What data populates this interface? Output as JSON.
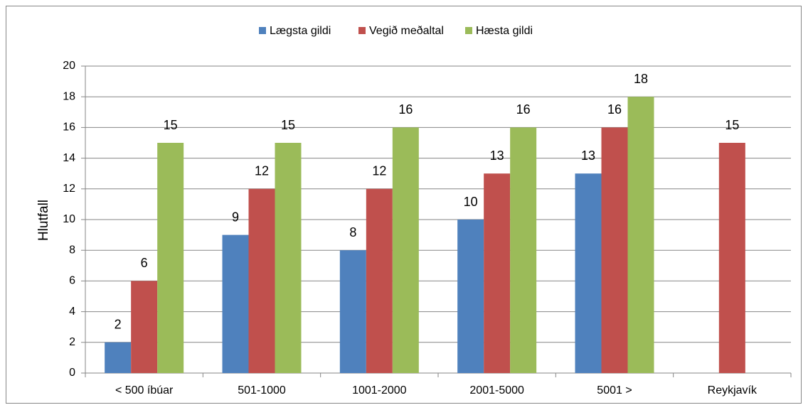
{
  "chart_data": {
    "type": "bar",
    "y_label": "Hlutfall",
    "categories": [
      "< 500 íbúar",
      "501-1000",
      "1001-2000",
      "2001-5000",
      "5001 >",
      "Reykjavík"
    ],
    "series": [
      {
        "name": "Lægsta gildi",
        "color": "#4f81bd",
        "values": [
          2,
          9,
          8,
          10,
          13,
          null
        ]
      },
      {
        "name": "Vegið meðaltal",
        "color": "#c0504d",
        "values": [
          6,
          12,
          12,
          13,
          16,
          15
        ]
      },
      {
        "name": "Hæsta gildi",
        "color": "#9bbb59",
        "values": [
          15,
          15,
          16,
          16,
          18,
          null
        ]
      }
    ],
    "ylim": [
      0,
      20
    ],
    "yticks": [
      0,
      2,
      4,
      6,
      8,
      10,
      12,
      14,
      16,
      18,
      20
    ],
    "grid": true,
    "legend": "top"
  }
}
